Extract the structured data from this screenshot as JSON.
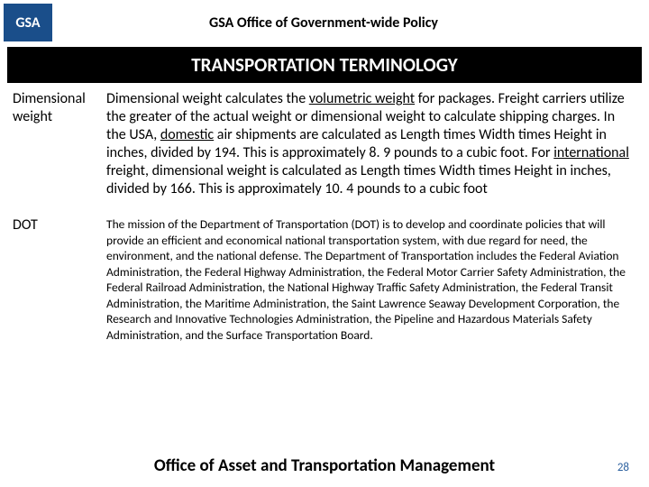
{
  "header": {
    "logo_text": "GSA",
    "title": "GSA Office of Government-wide Policy"
  },
  "title_bar": "TRANSPORTATION TERMINOLOGY",
  "rows": [
    {
      "term": "Dimensional weight",
      "def_html": "Dimensional weight calculates the <span class=\"u\">volumetric weight</span> for packages. Freight carriers utilize the greater of the actual weight or dimensional weight to calculate shipping charges.  In the USA, <span class=\"u\">domestic</span> air shipments are calculated as Length times Width times Height in inches, divided by 194. This is approximately 8. 9 pounds to a cubic foot.  For <span class=\"u\">international</span> freight, dimensional weight is calculated as Length times Width times Height in inches, divided by 166.  This is approximately 10. 4 pounds to a cubic foot",
      "def_class": ""
    },
    {
      "term": "DOT",
      "def_html": "The mission of the Department of Transportation (DOT) is to develop and coordinate policies that will provide an efficient and economical national transportation system, with due regard for need, the environment, and the national defense. The Department of Transportation includes the Federal Aviation Administration, the Federal Highway Administration, the Federal Motor Carrier Safety Administration, the Federal Railroad Administration, the National Highway Traffic Safety Administration, the Federal Transit Administration, the Maritime Administration, the Saint Lawrence Seaway Development Corporation, the Research and Innovative Technologies Administration, the Pipeline and Hazardous Materials Safety Administration, and the Surface Transportation Board.",
      "def_class": "small"
    }
  ],
  "footer": "Office of Asset and Transportation Management",
  "page_number": "28",
  "colors": {
    "logo_bg": "#1a4e8a",
    "title_bar_bg": "#000000",
    "page_num_color": "#2a5f9e"
  }
}
